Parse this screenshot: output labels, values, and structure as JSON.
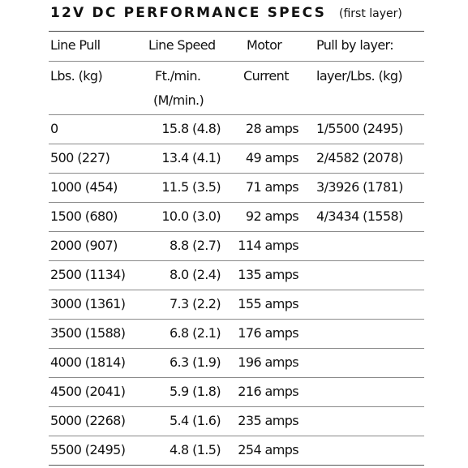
{
  "title": "12V DC PERFORMANCE SPECS",
  "subtitle": "(first layer)",
  "headers": {
    "line_pull": "Line Pull",
    "line_pull_unit": "Lbs. (kg)",
    "line_speed": "Line Speed",
    "line_speed_unit": "Ft./min.",
    "line_speed_unit2": "(M/min.)",
    "motor": "Motor",
    "motor_unit": "Current",
    "pull_by_layer": "Pull by layer:",
    "pull_by_layer_unit": "layer/Lbs. (kg)"
  },
  "rows": [
    {
      "pull": "0",
      "speed": "15.8 (4.8)",
      "current": "28 amps",
      "layer": "1/5500 (2495)"
    },
    {
      "pull": "500 (227)",
      "speed": "13.4 (4.1)",
      "current": "49 amps",
      "layer": "2/4582 (2078)"
    },
    {
      "pull": "1000 (454)",
      "speed": "11.5 (3.5)",
      "current": "71 amps",
      "layer": "3/3926 (1781)"
    },
    {
      "pull": "1500 (680)",
      "speed": "10.0 (3.0)",
      "current": "92 amps",
      "layer": "4/3434 (1558)"
    },
    {
      "pull": "2000 (907)",
      "speed": "8.8 (2.7)",
      "current": "114 amps",
      "layer": ""
    },
    {
      "pull": "2500 (1134)",
      "speed": "8.0 (2.4)",
      "current": "135 amps",
      "layer": ""
    },
    {
      "pull": "3000 (1361)",
      "speed": "7.3 (2.2)",
      "current": "155 amps",
      "layer": ""
    },
    {
      "pull": "3500 (1588)",
      "speed": "6.8 (2.1)",
      "current": "176 amps",
      "layer": ""
    },
    {
      "pull": "4000 (1814)",
      "speed": "6.3 (1.9)",
      "current": "196 amps",
      "layer": ""
    },
    {
      "pull": "4500 (2041)",
      "speed": "5.9 (1.8)",
      "current": "216 amps",
      "layer": ""
    },
    {
      "pull": "5000 (2268)",
      "speed": "5.4 (1.6)",
      "current": "235 amps",
      "layer": ""
    },
    {
      "pull": "5500 (2495)",
      "speed": "4.8 (1.5)",
      "current": "254 amps",
      "layer": ""
    }
  ]
}
